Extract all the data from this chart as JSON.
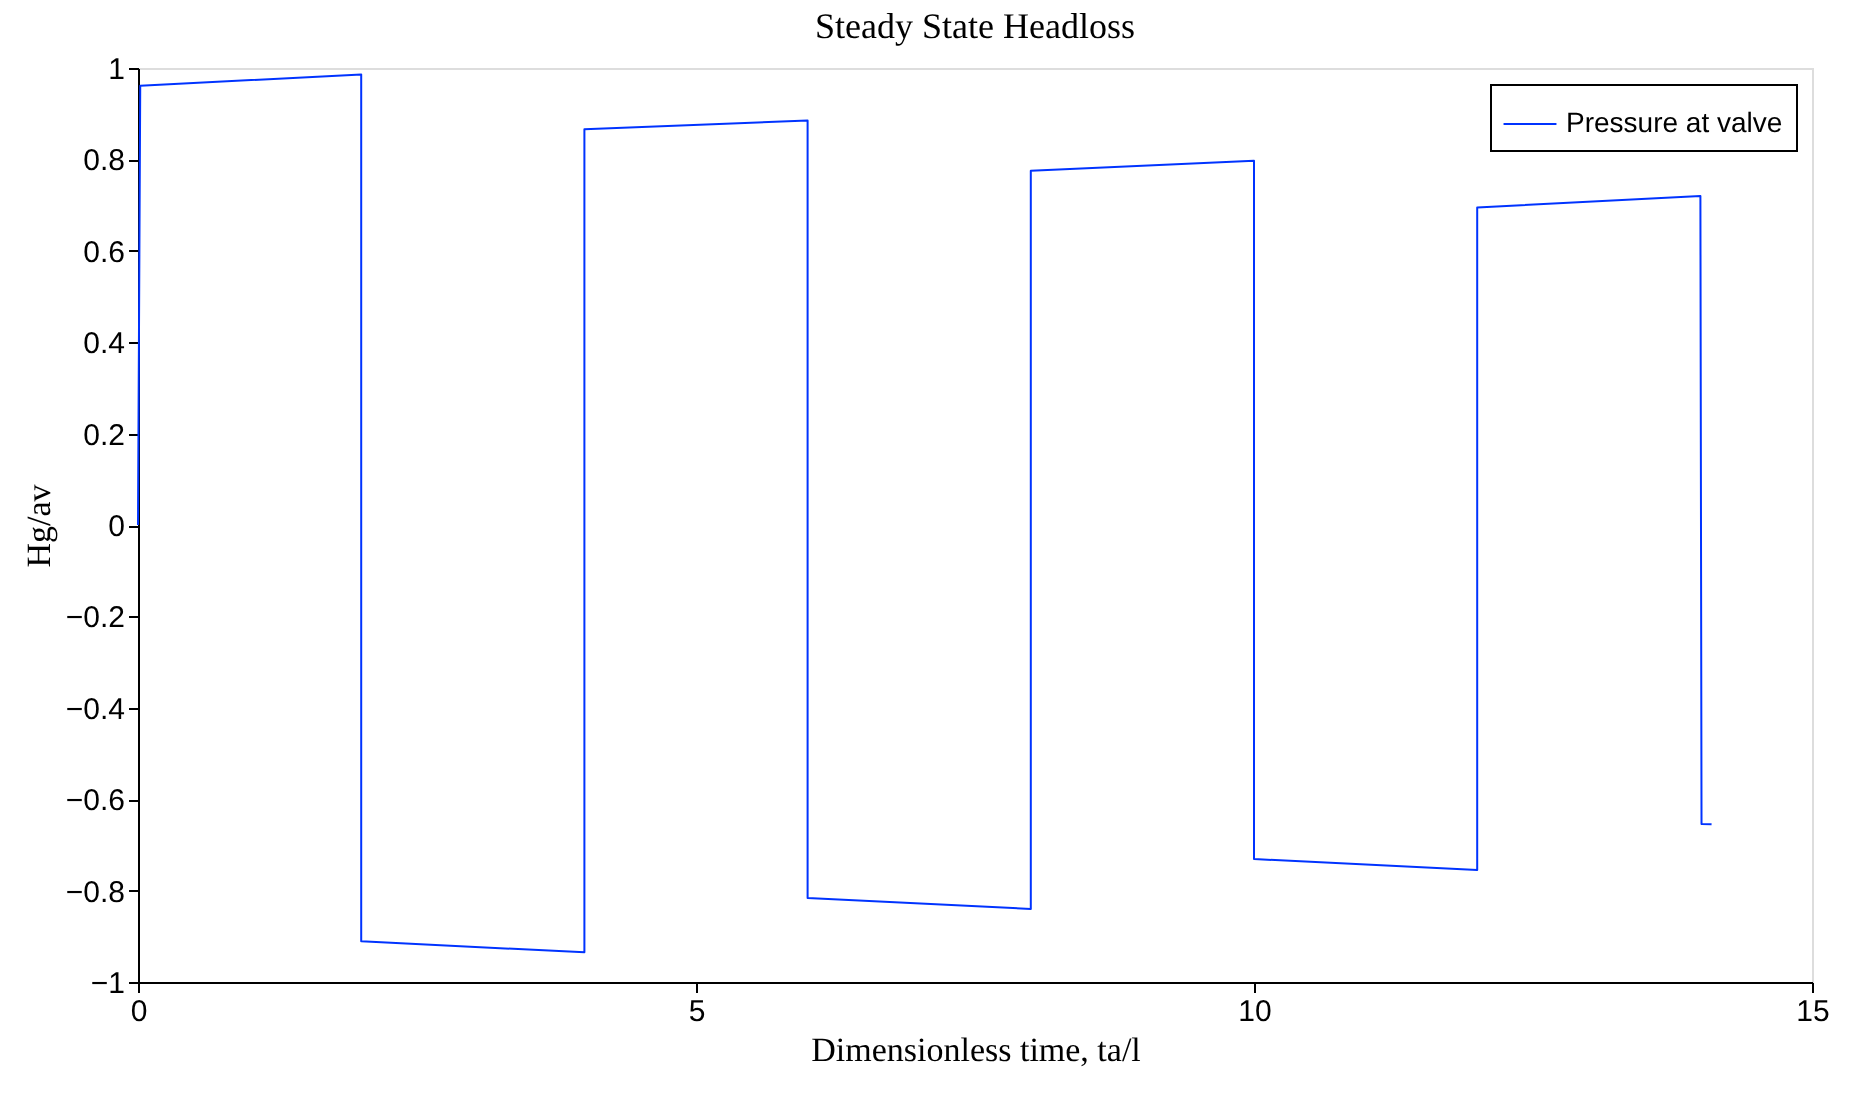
{
  "chart_data": {
    "type": "line",
    "title": "Steady State Headloss",
    "xlabel": "Dimensionless time, ta/l",
    "ylabel": "Hg/av",
    "series": [
      {
        "name": "Pressure at valve",
        "color": "#0033ff",
        "x": [
          0,
          0.02,
          2,
          2,
          4,
          4,
          6,
          6,
          8,
          8,
          10,
          10,
          12,
          12,
          14,
          14.01,
          14.1
        ],
        "values": [
          0,
          0.961,
          0.986,
          -0.911,
          -0.935,
          0.866,
          0.885,
          -0.816,
          -0.84,
          0.775,
          0.797,
          -0.731,
          -0.755,
          0.695,
          0.72,
          -0.654,
          -0.655
        ]
      }
    ],
    "xlim": [
      0,
      15
    ],
    "xticks": [
      0,
      5,
      10,
      15
    ],
    "ylim": [
      -1,
      1
    ],
    "yticks": [
      -1,
      -0.8,
      -0.6,
      -0.4,
      -0.2,
      0,
      0.2,
      0.4,
      0.6,
      0.8,
      1
    ],
    "grid": false,
    "legend": "top right",
    "marker": "none",
    "line_style": "solid"
  }
}
